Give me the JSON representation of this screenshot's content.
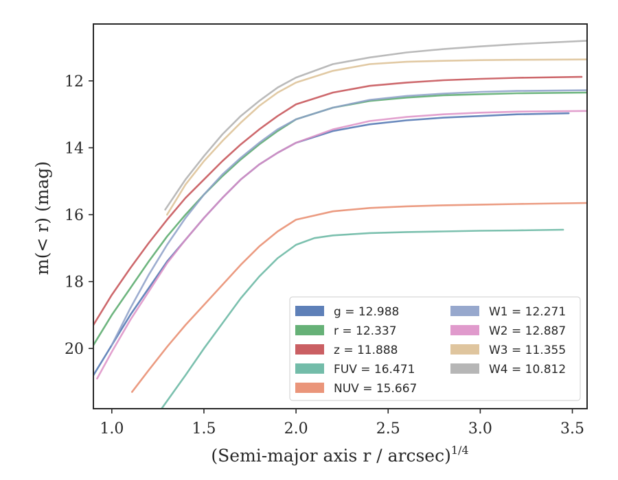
{
  "chart_data": {
    "type": "line",
    "xlabel": "(Semi-major axis r / arcsec)",
    "xlabel_exponent": "1/4",
    "ylabel": "m(< r) (mag)",
    "xlim": [
      0.9,
      3.58
    ],
    "ylim": [
      21.8,
      10.3
    ],
    "y_inverted": true,
    "x_ticks": [
      1.0,
      1.5,
      2.0,
      2.5,
      3.0,
      3.5
    ],
    "x_tick_labels": [
      "1.0",
      "1.5",
      "2.0",
      "2.5",
      "3.0",
      "3.5"
    ],
    "y_ticks": [
      12,
      14,
      16,
      18,
      20
    ],
    "y_tick_labels": [
      "12",
      "14",
      "16",
      "18",
      "20"
    ],
    "grid": false,
    "legend_position": "lower-right",
    "series": [
      {
        "name": "g = 12.988",
        "color": "#4c72b0",
        "x": [
          0.9,
          1.0,
          1.1,
          1.2,
          1.3,
          1.4,
          1.5,
          1.6,
          1.7,
          1.8,
          1.9,
          2.0,
          2.2,
          2.4,
          2.6,
          2.8,
          3.0,
          3.2,
          3.48
        ],
        "y": [
          20.8,
          19.9,
          19.0,
          18.2,
          17.4,
          16.75,
          16.1,
          15.5,
          14.95,
          14.5,
          14.15,
          13.85,
          13.5,
          13.3,
          13.18,
          13.1,
          13.05,
          13.0,
          12.97
        ]
      },
      {
        "name": "r = 12.337",
        "color": "#55a868",
        "x": [
          0.9,
          1.0,
          1.1,
          1.2,
          1.3,
          1.4,
          1.5,
          1.6,
          1.7,
          1.8,
          1.9,
          2.0,
          2.2,
          2.4,
          2.6,
          2.8,
          3.0,
          3.2,
          3.58
        ],
        "y": [
          19.9,
          19.0,
          18.2,
          17.4,
          16.65,
          16.0,
          15.4,
          14.85,
          14.35,
          13.9,
          13.5,
          13.15,
          12.8,
          12.6,
          12.5,
          12.43,
          12.4,
          12.37,
          12.35
        ]
      },
      {
        "name": "z = 11.888",
        "color": "#c44e52",
        "x": [
          0.9,
          1.0,
          1.1,
          1.2,
          1.3,
          1.4,
          1.5,
          1.6,
          1.7,
          1.8,
          1.9,
          2.0,
          2.2,
          2.4,
          2.6,
          2.8,
          3.0,
          3.2,
          3.55
        ],
        "y": [
          19.3,
          18.4,
          17.6,
          16.85,
          16.15,
          15.5,
          14.95,
          14.4,
          13.9,
          13.45,
          13.05,
          12.7,
          12.35,
          12.15,
          12.05,
          11.98,
          11.94,
          11.91,
          11.88
        ]
      },
      {
        "name": "FUV = 16.471",
        "color": "#64b5a0",
        "x": [
          1.27,
          1.4,
          1.5,
          1.6,
          1.7,
          1.8,
          1.9,
          2.0,
          2.1,
          2.2,
          2.4,
          2.6,
          2.8,
          3.0,
          3.2,
          3.45
        ],
        "y": [
          21.8,
          20.8,
          20.0,
          19.25,
          18.5,
          17.85,
          17.3,
          16.9,
          16.7,
          16.62,
          16.55,
          16.52,
          16.5,
          16.48,
          16.47,
          16.45
        ]
      },
      {
        "name": "NUV = 15.667",
        "color": "#e8896b",
        "x": [
          1.11,
          1.2,
          1.3,
          1.4,
          1.5,
          1.6,
          1.7,
          1.8,
          1.9,
          2.0,
          2.2,
          2.4,
          2.6,
          2.8,
          3.0,
          3.2,
          3.58
        ],
        "y": [
          21.3,
          20.65,
          19.95,
          19.3,
          18.7,
          18.1,
          17.5,
          16.95,
          16.5,
          16.15,
          15.9,
          15.8,
          15.75,
          15.72,
          15.7,
          15.68,
          15.65
        ]
      },
      {
        "name": "W1 = 12.271",
        "color": "#8c9fc8",
        "x": [
          1.0,
          1.1,
          1.2,
          1.3,
          1.4,
          1.5,
          1.6,
          1.7,
          1.8,
          1.9,
          2.0,
          2.2,
          2.4,
          2.6,
          2.8,
          3.0,
          3.2,
          3.58
        ],
        "y": [
          19.9,
          18.8,
          17.8,
          16.9,
          16.1,
          15.4,
          14.8,
          14.3,
          13.85,
          13.45,
          13.15,
          12.8,
          12.57,
          12.45,
          12.38,
          12.33,
          12.3,
          12.28
        ]
      },
      {
        "name": "W2 = 12.887",
        "color": "#dd8fc6",
        "x": [
          0.92,
          1.0,
          1.1,
          1.2,
          1.3,
          1.4,
          1.5,
          1.6,
          1.7,
          1.8,
          1.9,
          2.0,
          2.2,
          2.4,
          2.6,
          2.8,
          3.0,
          3.2,
          3.58
        ],
        "y": [
          20.9,
          20.1,
          19.15,
          18.3,
          17.45,
          16.75,
          16.1,
          15.5,
          14.95,
          14.5,
          14.15,
          13.85,
          13.45,
          13.2,
          13.08,
          13.0,
          12.95,
          12.92,
          12.9
        ]
      },
      {
        "name": "W3 = 11.355",
        "color": "#dcbf93",
        "x": [
          1.3,
          1.4,
          1.5,
          1.6,
          1.7,
          1.8,
          1.9,
          2.0,
          2.2,
          2.4,
          2.6,
          2.8,
          3.0,
          3.2,
          3.58
        ],
        "y": [
          16.0,
          15.1,
          14.4,
          13.8,
          13.25,
          12.75,
          12.35,
          12.05,
          11.7,
          11.5,
          11.43,
          11.4,
          11.38,
          11.37,
          11.36
        ]
      },
      {
        "name": "W4 = 10.812",
        "color": "#aeaeae",
        "x": [
          1.29,
          1.4,
          1.5,
          1.6,
          1.7,
          1.8,
          1.9,
          2.0,
          2.2,
          2.4,
          2.6,
          2.8,
          3.0,
          3.2,
          3.58
        ],
        "y": [
          15.85,
          14.95,
          14.25,
          13.6,
          13.05,
          12.6,
          12.2,
          11.9,
          11.5,
          11.3,
          11.15,
          11.05,
          10.97,
          10.9,
          10.8
        ]
      }
    ]
  }
}
